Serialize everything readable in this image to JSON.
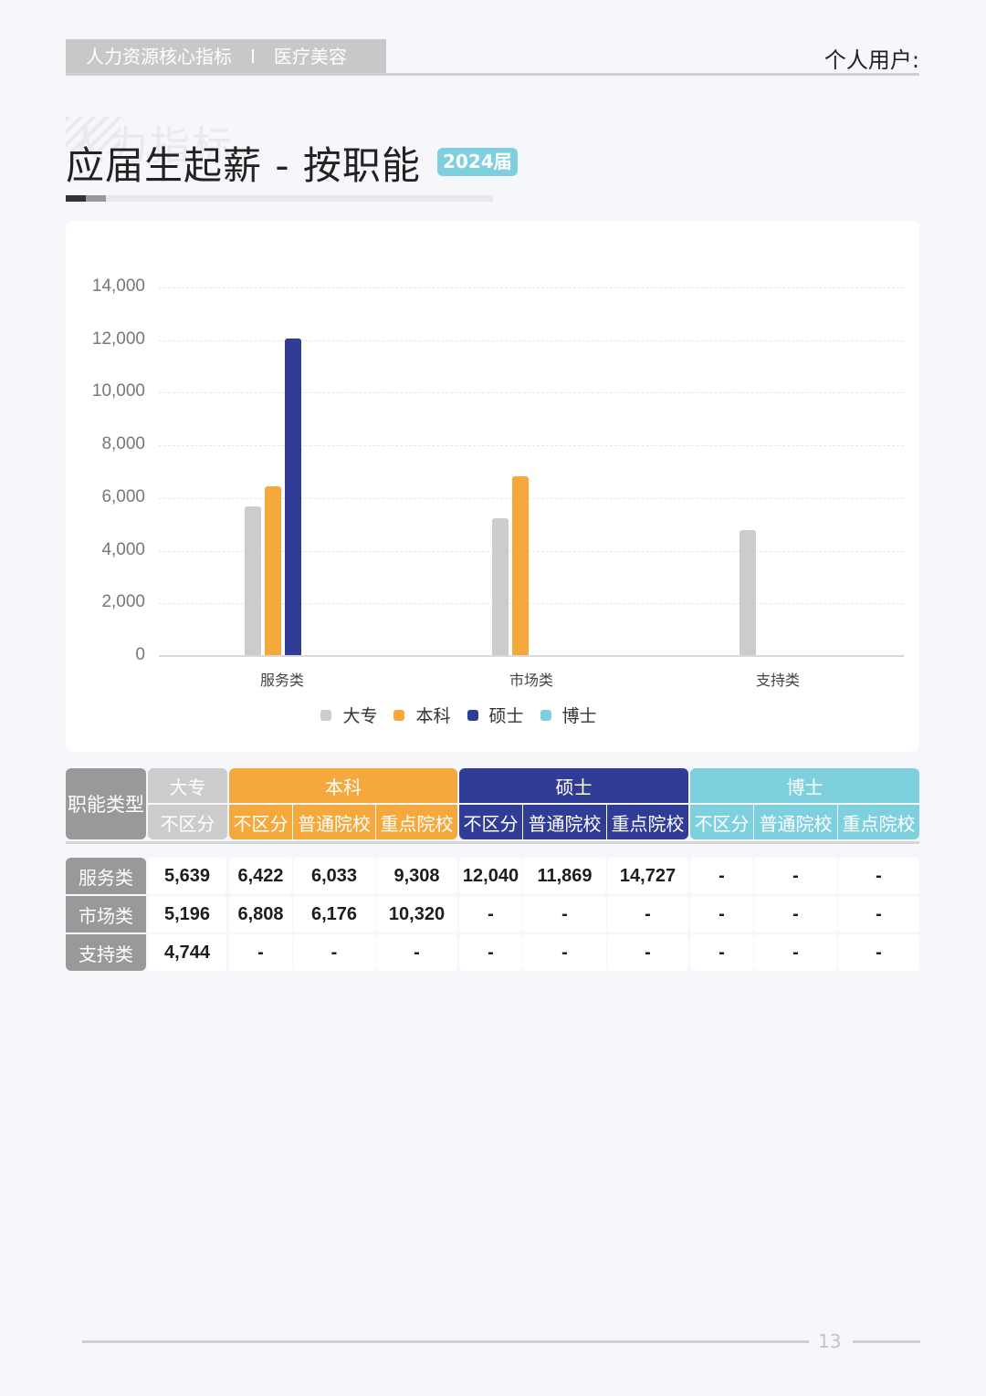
{
  "header": {
    "tab_left": "人力资源核心指标",
    "tab_sep": "I",
    "tab_right": "医疗美容",
    "user_label": "个人用户:"
  },
  "title": {
    "watermark": "人力指标",
    "text": "应届生起薪 - 按职能",
    "badge": "2024届"
  },
  "colors": {
    "dazhuan": "#cccccc",
    "benke": "#f5a83c",
    "shuoshi": "#303c96",
    "boshi": "#7fd0df",
    "row_label": "#999999"
  },
  "chart_data": {
    "type": "bar",
    "title": "应届生起薪 - 按职能",
    "xlabel": "",
    "ylabel": "",
    "categories": [
      "服务类",
      "市场类",
      "支持类"
    ],
    "series": [
      {
        "name": "大专",
        "color": "#cccccc",
        "values": [
          5639,
          5196,
          4744
        ]
      },
      {
        "name": "本科",
        "color": "#f5a83c",
        "values": [
          6422,
          6808,
          null
        ]
      },
      {
        "name": "硕士",
        "color": "#303c96",
        "values": [
          12040,
          null,
          null
        ]
      },
      {
        "name": "博士",
        "color": "#7fd0df",
        "values": [
          null,
          null,
          null
        ]
      }
    ],
    "yticks": [
      "0",
      "2,000",
      "4,000",
      "6,000",
      "8,000",
      "10,000",
      "12,000",
      "14,000"
    ],
    "ylim": [
      0,
      14000
    ],
    "grid": true,
    "legend_position": "bottom"
  },
  "legend": [
    {
      "label": "大专"
    },
    {
      "label": "本科"
    },
    {
      "label": "硕士"
    },
    {
      "label": "博士"
    }
  ],
  "table": {
    "corner": "职能类型",
    "groups": [
      {
        "label": "大专",
        "subs": [
          "不区分"
        ]
      },
      {
        "label": "本科",
        "subs": [
          "不区分",
          "普通院校",
          "重点院校"
        ]
      },
      {
        "label": "硕士",
        "subs": [
          "不区分",
          "普通院校",
          "重点院校"
        ]
      },
      {
        "label": "博士",
        "subs": [
          "不区分",
          "普通院校",
          "重点院校"
        ]
      }
    ],
    "rows": [
      {
        "label": "服务类",
        "cells": [
          "5,639",
          "6,422",
          "6,033",
          "9,308",
          "12,040",
          "11,869",
          "14,727",
          "-",
          "-",
          "-"
        ]
      },
      {
        "label": "市场类",
        "cells": [
          "5,196",
          "6,808",
          "6,176",
          "10,320",
          "-",
          "-",
          "-",
          "-",
          "-",
          "-"
        ]
      },
      {
        "label": "支持类",
        "cells": [
          "4,744",
          "-",
          "-",
          "-",
          "-",
          "-",
          "-",
          "-",
          "-",
          "-"
        ]
      }
    ]
  },
  "footer": {
    "page_number": "13"
  }
}
